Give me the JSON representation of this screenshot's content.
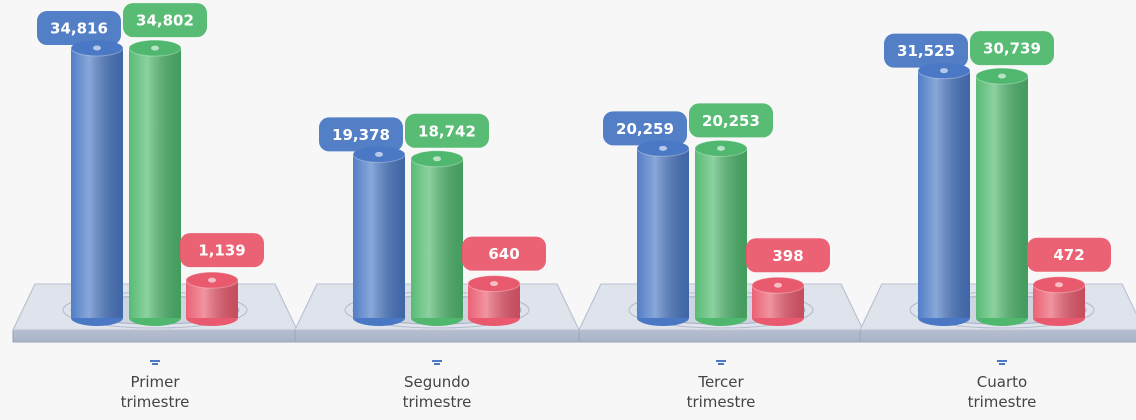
{
  "chart_data": {
    "type": "bar",
    "categories": [
      "Primer trimestre",
      "Segundo trimestre",
      "Tercer trimestre",
      "Cuarto trimestre"
    ],
    "series": [
      {
        "color": "#4a78c4",
        "values": [
          34816,
          19378,
          20259,
          31525
        ],
        "value_labels": [
          "34,816",
          "19,378",
          "20,259",
          "31,525"
        ]
      },
      {
        "color": "#4fb86e",
        "values": [
          34802,
          18742,
          20253,
          30739
        ],
        "value_labels": [
          "34,802",
          "18,742",
          "20,253",
          "30,739"
        ]
      },
      {
        "color": "#ea5a6e",
        "values": [
          1139,
          640,
          398,
          472
        ],
        "value_labels": [
          "1,139",
          "640",
          "398",
          "472"
        ]
      }
    ]
  }
}
